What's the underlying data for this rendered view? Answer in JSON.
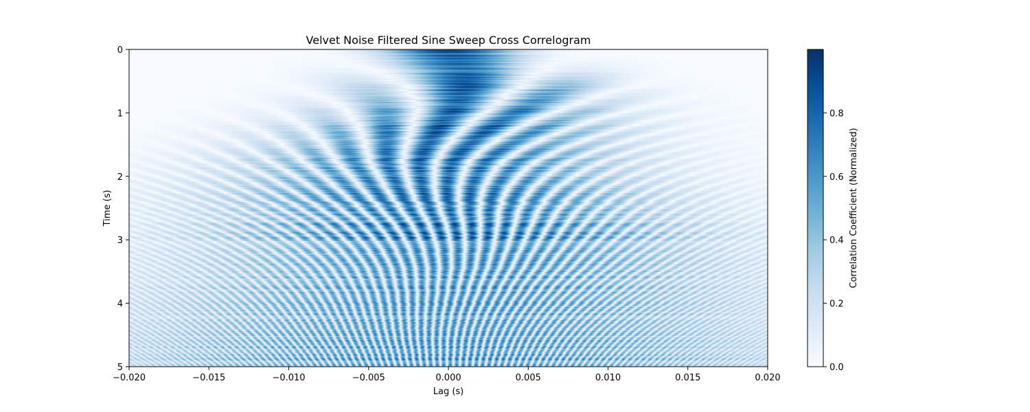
{
  "chart_data": {
    "type": "heatmap",
    "title": "Velvet Noise Filtered Sine Sweep Cross Correlogram",
    "xlabel": "Lag (s)",
    "ylabel": "Time (s)",
    "xlim": [
      -0.02,
      0.02
    ],
    "ylim": [
      0,
      5
    ],
    "y_inverted": true,
    "x_ticks": [
      -0.02,
      -0.015,
      -0.01,
      -0.005,
      0.0,
      0.005,
      0.01,
      0.015,
      0.02
    ],
    "x_tick_labels": [
      "−0.020",
      "−0.015",
      "−0.010",
      "−0.005",
      "0.000",
      "0.005",
      "0.010",
      "0.015",
      "0.020"
    ],
    "y_ticks": [
      0,
      1,
      2,
      3,
      4,
      5
    ],
    "y_tick_labels": [
      "0",
      "1",
      "2",
      "3",
      "4",
      "5"
    ],
    "colormap": "Blues",
    "colormap_stops": [
      "#f7fbff",
      "#deebf7",
      "#c6dbef",
      "#9ecae1",
      "#6baed6",
      "#4292c6",
      "#2171b5",
      "#08519c",
      "#08306b"
    ],
    "colorbar": {
      "label": "Correlation Coefficient (Normalized)",
      "range": [
        0,
        1
      ],
      "ticks": [
        0.0,
        0.2,
        0.4,
        0.6,
        0.8
      ],
      "tick_labels": [
        "0.0",
        "0.2",
        "0.4",
        "0.6",
        "0.8"
      ]
    },
    "grid": false
  }
}
